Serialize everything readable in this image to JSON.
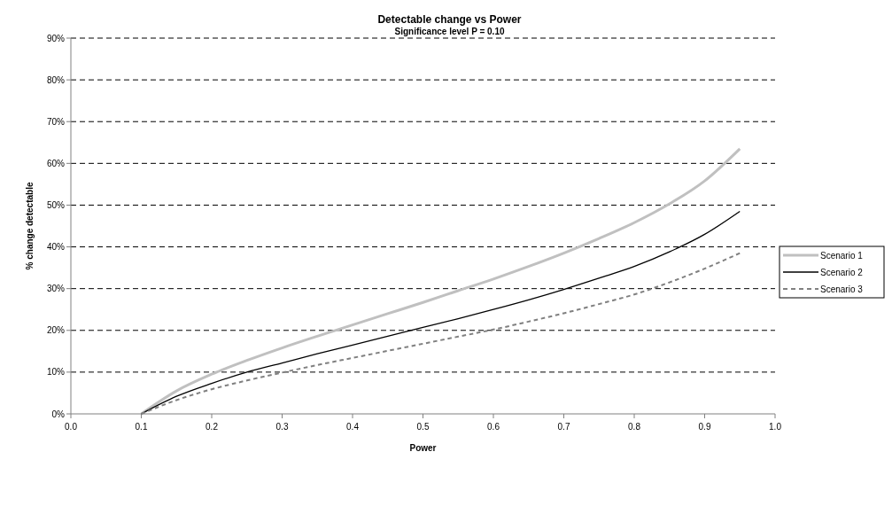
{
  "chart_data": {
    "type": "line",
    "title": "Detectable change vs Power",
    "subtitle": "Significance level P = 0.10",
    "xlabel": "Power",
    "ylabel": "% change detectable",
    "x": [
      0.1,
      0.15,
      0.2,
      0.25,
      0.3,
      0.35,
      0.4,
      0.45,
      0.5,
      0.55,
      0.6,
      0.65,
      0.7,
      0.75,
      0.8,
      0.85,
      0.9,
      0.95
    ],
    "series": [
      {
        "name": "Scenario 1",
        "color": "#c0c0c0",
        "line_style": "solid",
        "values": [
          0,
          5.5,
          9.5,
          12.8,
          15.8,
          18.6,
          21.3,
          24,
          26.7,
          29.5,
          32.3,
          35.3,
          38.5,
          42,
          45.8,
          50.3,
          55.8,
          63.5
        ]
      },
      {
        "name": "Scenario 2",
        "color": "#000000",
        "line_style": "solid",
        "values": [
          0,
          4.2,
          7.3,
          10,
          12.2,
          14.4,
          16.5,
          18.6,
          20.7,
          22.8,
          25,
          27.3,
          29.8,
          32.5,
          35.3,
          38.8,
          43,
          48.5
        ]
      },
      {
        "name": "Scenario 3",
        "color": "#808080",
        "line_style": "dashed",
        "values": [
          0,
          3.3,
          5.9,
          8,
          9.9,
          11.7,
          13.4,
          15.1,
          16.8,
          18.5,
          20.2,
          22.1,
          24.1,
          26.3,
          28.6,
          31.5,
          34.8,
          38.5
        ]
      }
    ],
    "xlim": [
      0,
      1
    ],
    "xticks": [
      {
        "value": 0,
        "label": "0.0"
      },
      {
        "value": 0.1,
        "label": "0.1"
      },
      {
        "value": 0.2,
        "label": "0.2"
      },
      {
        "value": 0.3,
        "label": "0.3"
      },
      {
        "value": 0.4,
        "label": "0.4"
      },
      {
        "value": 0.5,
        "label": "0.5"
      },
      {
        "value": 0.6,
        "label": "0.6"
      },
      {
        "value": 0.7,
        "label": "0.7"
      },
      {
        "value": 0.8,
        "label": "0.8"
      },
      {
        "value": 0.9,
        "label": "0.9"
      },
      {
        "value": 1,
        "label": "1.0"
      }
    ],
    "ylim": [
      0,
      90
    ],
    "yticks": [
      {
        "value": 0,
        "label": "0%"
      },
      {
        "value": 10,
        "label": "10%"
      },
      {
        "value": 20,
        "label": "20%"
      },
      {
        "value": 30,
        "label": "30%"
      },
      {
        "value": 40,
        "label": "40%"
      },
      {
        "value": 50,
        "label": "50%"
      },
      {
        "value": 60,
        "label": "60%"
      },
      {
        "value": 70,
        "label": "70%"
      },
      {
        "value": 80,
        "label": "80%"
      },
      {
        "value": 90,
        "label": "90%"
      }
    ],
    "grid": "y",
    "legend": "right",
    "marker": "none"
  }
}
